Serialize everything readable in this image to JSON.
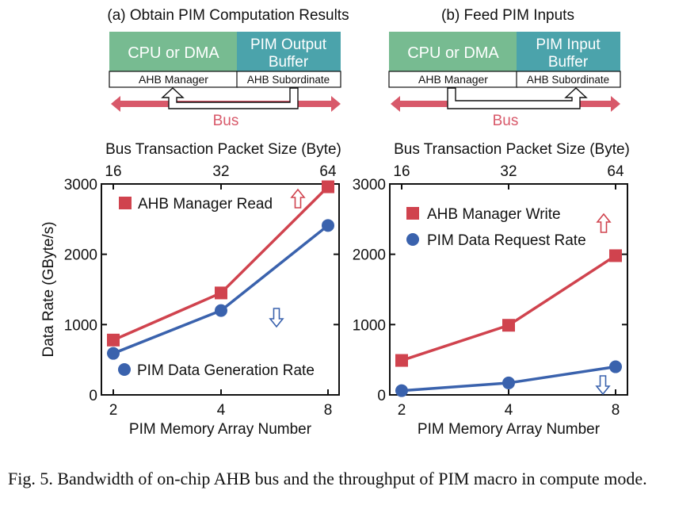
{
  "colors": {
    "red": "#d0434e",
    "blue": "#3a62ad",
    "green": "#77bb91",
    "teal": "#4ba3ab",
    "bus": "#d8596a"
  },
  "diagrams": [
    {
      "title": "(a)  Obtain PIM Computation Results",
      "left_box": "CPU or DMA",
      "left_port": "AHB Manager",
      "right_box_line1": "PIM Output",
      "right_box_line2": "Buffer",
      "right_port": "AHB Subordinate",
      "bus_label": "Bus",
      "arrow_direction": "subordinate-to-manager"
    },
    {
      "title": "(b) Feed PIM Inputs",
      "left_box": "CPU or DMA",
      "left_port": "AHB Manager",
      "right_box_line1": "PIM Input",
      "right_box_line2": "Buffer",
      "right_port": "AHB Subordinate",
      "bus_label": "Bus",
      "arrow_direction": "manager-to-subordinate"
    }
  ],
  "chart_data": [
    {
      "type": "line",
      "top_axis_label": "Bus Transaction Packet Size (Byte)",
      "top_ticks": [
        "16",
        "32",
        "64"
      ],
      "xlabel": "PIM Memory Array Number",
      "x_ticks": [
        "2",
        "4",
        "8"
      ],
      "ylabel": "Data Rate (GByte/s)",
      "y_ticks": [
        "0",
        "1000",
        "2000",
        "3000"
      ],
      "ylim": [
        0,
        3000
      ],
      "x_scale": "log2",
      "series": [
        {
          "name": "AHB Manager Read",
          "marker": "square",
          "color": "red",
          "x": [
            2,
            4,
            8
          ],
          "values": [
            780,
            1450,
            2960
          ]
        },
        {
          "name": "PIM Data Generation Rate",
          "marker": "circle",
          "color": "blue",
          "x": [
            2,
            4,
            8
          ],
          "values": [
            590,
            1200,
            2410
          ]
        }
      ],
      "annotations": [
        {
          "symbol": "⇧",
          "color": "red",
          "meaning": "up"
        },
        {
          "symbol": "⇩",
          "color": "blue",
          "meaning": "down"
        }
      ]
    },
    {
      "type": "line",
      "top_axis_label": "Bus Transaction Packet Size (Byte)",
      "top_ticks": [
        "16",
        "32",
        "64"
      ],
      "xlabel": "PIM Memory Array Number",
      "x_ticks": [
        "2",
        "4",
        "8"
      ],
      "ylabel": "",
      "y_ticks": [
        "0",
        "1000",
        "2000",
        "3000"
      ],
      "ylim": [
        0,
        3000
      ],
      "x_scale": "log2",
      "series": [
        {
          "name": "AHB Manager Write",
          "marker": "square",
          "color": "red",
          "x": [
            2,
            4,
            8
          ],
          "values": [
            490,
            990,
            1980
          ]
        },
        {
          "name": "PIM Data Request Rate",
          "marker": "circle",
          "color": "blue",
          "x": [
            2,
            4,
            8
          ],
          "values": [
            60,
            170,
            400
          ]
        }
      ],
      "annotations": [
        {
          "symbol": "⇧",
          "color": "red",
          "meaning": "up"
        },
        {
          "symbol": "⇩",
          "color": "blue",
          "meaning": "down"
        }
      ]
    }
  ],
  "caption": "Fig. 5.  Bandwidth of on-chip AHB bus and the throughput of PIM macro in compute mode."
}
